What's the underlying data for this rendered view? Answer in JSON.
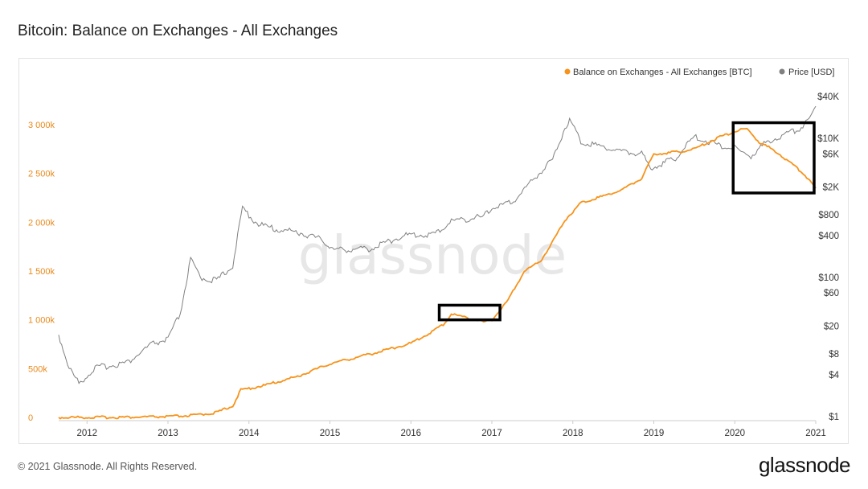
{
  "header": {
    "title": "Bitcoin: Balance on Exchanges - All Exchanges"
  },
  "footer": {
    "copyright": "© 2021 Glassnode. All Rights Reserved.",
    "logo": "glassnode"
  },
  "watermark": "glassnode",
  "colors": {
    "balance": "#f7931a",
    "price": "#808080",
    "highlight": "#000000"
  },
  "chart_data": {
    "type": "line",
    "title": "Bitcoin: Balance on Exchanges - All Exchanges",
    "legend_position": "top-right",
    "grid": false,
    "x_ticks": [
      "2012",
      "2013",
      "2014",
      "2015",
      "2016",
      "2017",
      "2018",
      "2019",
      "2020",
      "2021"
    ],
    "xlim": [
      2011.65,
      2021.0
    ],
    "y_left": {
      "ticks": [
        "0",
        "500k",
        "1 000k",
        "1 500k",
        "2 000k",
        "2 500k",
        "3 000k"
      ],
      "range": [
        0,
        3000000
      ]
    },
    "y_right": {
      "scale": "log",
      "ticks": [
        "$1",
        "$4",
        "$8",
        "$20",
        "$60",
        "$100",
        "$400",
        "$800",
        "$2K",
        "$6K",
        "$10K",
        "$40K"
      ],
      "tick_values": [
        1,
        4,
        8,
        20,
        60,
        100,
        400,
        800,
        2000,
        6000,
        10000,
        40000
      ]
    },
    "series": [
      {
        "name": "Balance on Exchanges - All Exchanges [BTC]",
        "axis": "left",
        "x": [
          2011.65,
          2012.5,
          2013.0,
          2013.3,
          2013.6,
          2013.8,
          2013.9,
          2014.2,
          2014.6,
          2015.0,
          2015.5,
          2016.0,
          2016.2,
          2016.4,
          2016.5,
          2016.7,
          2016.9,
          2017.0,
          2017.2,
          2017.4,
          2017.6,
          2017.75,
          2017.9,
          2018.1,
          2018.3,
          2018.6,
          2018.85,
          2019.0,
          2019.3,
          2019.5,
          2019.8,
          2020.0,
          2020.15,
          2020.3,
          2020.5,
          2020.7,
          2020.85,
          2021.0
        ],
        "y": [
          0,
          2000,
          8000,
          20000,
          50000,
          120000,
          280000,
          330000,
          420000,
          550000,
          650000,
          760000,
          850000,
          950000,
          1060000,
          1020000,
          980000,
          1000000,
          1200000,
          1500000,
          1600000,
          1800000,
          2020000,
          2200000,
          2250000,
          2330000,
          2450000,
          2700000,
          2720000,
          2750000,
          2870000,
          2930000,
          2960000,
          2820000,
          2730000,
          2600000,
          2500000,
          2350000
        ]
      },
      {
        "name": "Price [USD]",
        "axis": "right",
        "x": [
          2011.65,
          2011.78,
          2011.9,
          2012.1,
          2012.5,
          2012.8,
          2013.0,
          2013.15,
          2013.28,
          2013.4,
          2013.6,
          2013.8,
          2013.92,
          2014.1,
          2014.3,
          2014.6,
          2014.9,
          2015.05,
          2015.5,
          2015.9,
          2016.3,
          2016.5,
          2016.9,
          2017.0,
          2017.25,
          2017.5,
          2017.75,
          2017.9,
          2017.96,
          2018.1,
          2018.3,
          2018.6,
          2018.85,
          2018.96,
          2019.25,
          2019.5,
          2019.8,
          2020.0,
          2020.2,
          2020.4,
          2020.6,
          2020.8,
          2020.92,
          2021.0
        ],
        "y": [
          15,
          5,
          3,
          5,
          6,
          11,
          13,
          30,
          180,
          100,
          90,
          150,
          1000,
          600,
          500,
          450,
          350,
          250,
          260,
          400,
          420,
          650,
          750,
          1000,
          1200,
          2500,
          5000,
          14000,
          19000,
          9000,
          8000,
          6500,
          6000,
          3800,
          5000,
          10500,
          8000,
          7200,
          5500,
          9000,
          11000,
          14000,
          19000,
          29000
        ]
      }
    ],
    "annotations": [
      {
        "shape": "rectangle",
        "x_range": [
          2016.35,
          2017.1
        ],
        "y_range_left": [
          1000000,
          1150000
        ]
      },
      {
        "shape": "rectangle",
        "x_range": [
          2019.98,
          2020.98
        ],
        "y_range_left": [
          2300000,
          3020000
        ]
      }
    ]
  }
}
